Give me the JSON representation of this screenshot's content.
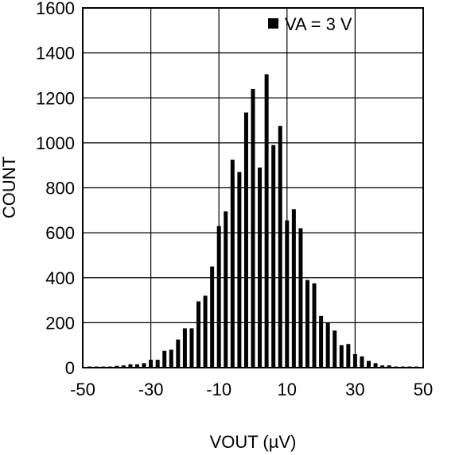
{
  "chart_data": {
    "type": "bar",
    "xlabel": "VOUT (µV)",
    "ylabel": "COUNT",
    "xlim": [
      -50,
      50
    ],
    "ylim": [
      0,
      1600
    ],
    "x_ticks": [
      -50,
      -30,
      -10,
      10,
      30,
      50
    ],
    "x_tick_labels": [
      "-50",
      "-30",
      "-10",
      "10",
      "30",
      "50"
    ],
    "y_ticks": [
      0,
      200,
      400,
      600,
      800,
      1000,
      1200,
      1400,
      1600
    ],
    "y_tick_labels": [
      "0",
      "200",
      "400",
      "600",
      "800",
      "1000",
      "1200",
      "1400",
      "1600"
    ],
    "grid": true,
    "legend": {
      "position": "top-right",
      "entries": [
        "VA = 3 V"
      ]
    },
    "bar_color": "#000000",
    "x": [
      -48,
      -46,
      -44,
      -42,
      -40,
      -38,
      -36,
      -34,
      -32,
      -30,
      -28,
      -26,
      -24,
      -22,
      -20,
      -18,
      -16,
      -14,
      -12,
      -10,
      -8,
      -6,
      -4,
      -2,
      0,
      2,
      4,
      6,
      8,
      10,
      12,
      14,
      16,
      18,
      20,
      22,
      24,
      26,
      28,
      30,
      32,
      34,
      36,
      38,
      40,
      42,
      44,
      46,
      48
    ],
    "values": [
      5,
      5,
      5,
      5,
      8,
      10,
      15,
      15,
      20,
      35,
      35,
      75,
      80,
      125,
      175,
      175,
      295,
      320,
      450,
      630,
      695,
      925,
      870,
      1135,
      1240,
      890,
      1305,
      990,
      1075,
      655,
      705,
      620,
      390,
      375,
      230,
      200,
      165,
      100,
      105,
      60,
      50,
      30,
      20,
      10,
      10,
      5,
      5,
      5,
      5
    ]
  }
}
